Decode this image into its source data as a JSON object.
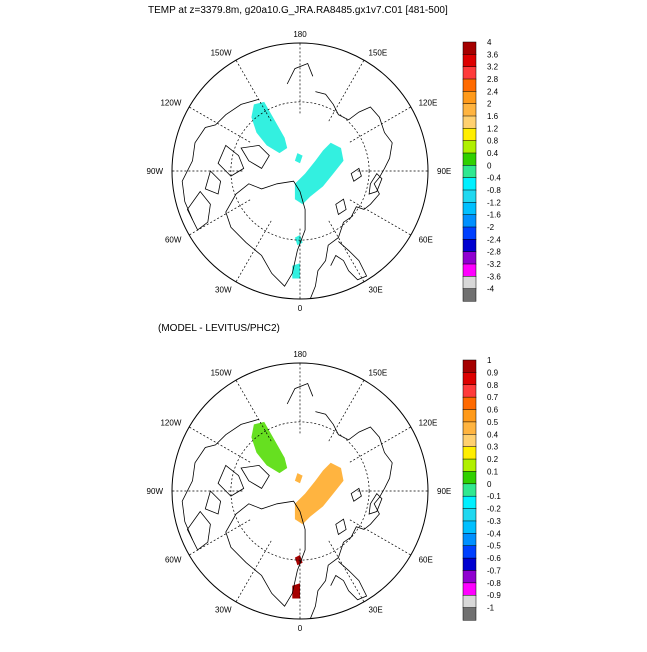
{
  "panels": [
    {
      "title": "TEMP at z=3379.8m, g20a10.G_JRA.RA8485.gx1v7.C01 [481-500]",
      "longitude_labels": [
        "180",
        "150E",
        "120E",
        "90E",
        "60E",
        "30E",
        "0",
        "30W",
        "60W",
        "90W",
        "120W",
        "150W"
      ],
      "colorbar": {
        "labels": [
          "4",
          "3.6",
          "3.2",
          "2.8",
          "2.4",
          "2",
          "1.6",
          "1.2",
          "0.8",
          "0.4",
          "0",
          "-0.4",
          "-0.8",
          "-1.2",
          "-1.6",
          "-2",
          "-2.4",
          "-2.8",
          "-3.2",
          "-3.6",
          "-4"
        ],
        "colors": [
          "#a50000",
          "#dd0000",
          "#ff3b3b",
          "#ff6a00",
          "#ff9a1a",
          "#ffb440",
          "#ffd070",
          "#ffee00",
          "#b0f000",
          "#30d000",
          "#30e890",
          "#00f0ff",
          "#20d8f0",
          "#00c0ff",
          "#0090ff",
          "#0040ff",
          "#0000d0",
          "#9000d0",
          "#ff00ff",
          "#d8d8d8",
          "#707070"
        ]
      },
      "patch_color": "#33f0e0"
    },
    {
      "title": "(MODEL - LEVITUS/PHC2)",
      "longitude_labels": [
        "180",
        "150E",
        "120E",
        "90E",
        "60E",
        "30E",
        "0",
        "30W",
        "60W",
        "90W",
        "120W",
        "150W"
      ],
      "colorbar": {
        "labels": [
          "1",
          "0.9",
          "0.8",
          "0.7",
          "0.6",
          "0.5",
          "0.4",
          "0.3",
          "0.2",
          "0.1",
          "0",
          "-0.1",
          "-0.2",
          "-0.3",
          "-0.4",
          "-0.5",
          "-0.6",
          "-0.7",
          "-0.8",
          "-0.9",
          "-1"
        ],
        "colors": [
          "#a50000",
          "#dd0000",
          "#ff3b3b",
          "#ff6a00",
          "#ff9a1a",
          "#ffb440",
          "#ffd070",
          "#ffee00",
          "#b0f000",
          "#30d000",
          "#30e890",
          "#00f0ff",
          "#20d8f0",
          "#00c0ff",
          "#0090ff",
          "#0040ff",
          "#0000d0",
          "#9000d0",
          "#ff00ff",
          "#d8d8d8",
          "#707070"
        ]
      },
      "patch_colors": {
        "canada_basin": "#66e020",
        "eurasian_basin": "#ffb440",
        "south": "#a50000"
      }
    }
  ]
}
